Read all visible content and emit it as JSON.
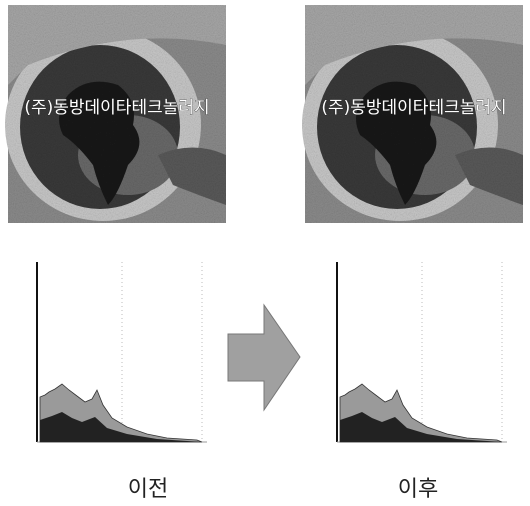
{
  "panels": [
    {
      "watermark": "(주)동방데이타테크놀러지",
      "caption": "이전"
    },
    {
      "watermark": "(주)동방데이타테크놀러지",
      "caption": "이후"
    }
  ]
}
